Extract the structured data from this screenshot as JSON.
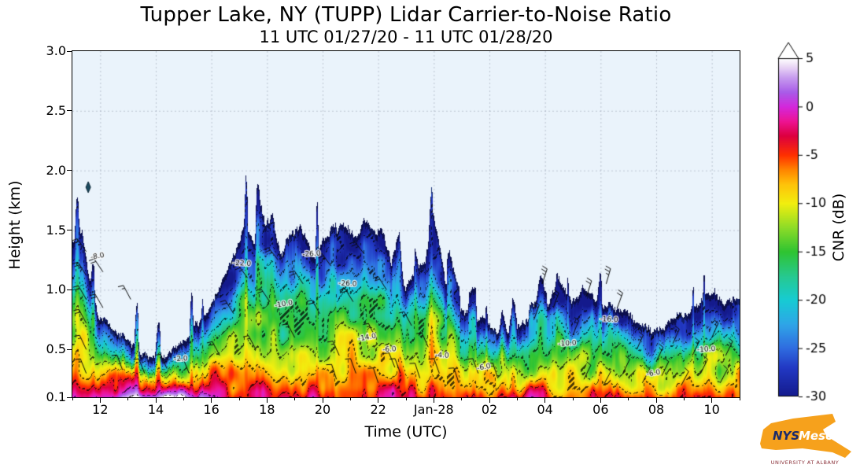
{
  "title": "Tupper Lake, NY (TUPP) Lidar Carrier-to-Noise Ratio",
  "subtitle": "11 UTC 01/27/20 - 11 UTC 01/28/20",
  "axes": {
    "xlabel": "Time (UTC)",
    "ylabel": "Height (km)",
    "x_range_hours": [
      11,
      35
    ],
    "y_range_km": [
      0.1,
      3.0
    ],
    "x_ticks": [
      {
        "hour": 12,
        "label": "12"
      },
      {
        "hour": 14,
        "label": "14"
      },
      {
        "hour": 16,
        "label": "16"
      },
      {
        "hour": 18,
        "label": "18"
      },
      {
        "hour": 20,
        "label": "20"
      },
      {
        "hour": 22,
        "label": "22"
      },
      {
        "hour": 24,
        "label": "Jan-28"
      },
      {
        "hour": 26,
        "label": "02"
      },
      {
        "hour": 28,
        "label": "04"
      },
      {
        "hour": 30,
        "label": "06"
      },
      {
        "hour": 32,
        "label": "08"
      },
      {
        "hour": 34,
        "label": "10"
      }
    ],
    "y_ticks": [
      {
        "km": 0.1,
        "label": "0.1"
      },
      {
        "km": 0.5,
        "label": "0.5"
      },
      {
        "km": 1.0,
        "label": "1.0"
      },
      {
        "km": 1.5,
        "label": "1.5"
      },
      {
        "km": 2.0,
        "label": "2.0"
      },
      {
        "km": 2.5,
        "label": "2.5"
      },
      {
        "km": 3.0,
        "label": "3.0"
      }
    ]
  },
  "colorbar": {
    "label": "CNR (dB)",
    "min": -30,
    "max": 5,
    "extend": "max",
    "ticks": [
      {
        "value": 5,
        "label": "5"
      },
      {
        "value": 0,
        "label": "0"
      },
      {
        "value": -5,
        "label": "-5"
      },
      {
        "value": -10,
        "label": "-10"
      },
      {
        "value": -15,
        "label": "-15"
      },
      {
        "value": -20,
        "label": "-20"
      },
      {
        "value": -25,
        "label": "-25"
      },
      {
        "value": -30,
        "label": "-30"
      }
    ]
  },
  "chart_data": {
    "type": "heatmap",
    "x_units": "hours UTC (11 UTC 01/27/20 through 11 UTC 01/28/20)",
    "y_units": "km AGL",
    "value_units": "CNR dB",
    "background_color": "#eaf3fb",
    "echo_top_km": [
      [
        11.0,
        1.42
      ],
      [
        11.35,
        1.5
      ],
      [
        11.6,
        1.1
      ],
      [
        11.9,
        0.8
      ],
      [
        12.3,
        0.68
      ],
      [
        12.8,
        0.6
      ],
      [
        13.2,
        0.52
      ],
      [
        13.7,
        0.45
      ],
      [
        14.2,
        0.42
      ],
      [
        14.7,
        0.5
      ],
      [
        15.2,
        0.6
      ],
      [
        15.7,
        0.75
      ],
      [
        16.1,
        0.95
      ],
      [
        16.5,
        1.15
      ],
      [
        16.9,
        1.28
      ],
      [
        17.2,
        1.5
      ],
      [
        17.5,
        1.38
      ],
      [
        17.9,
        1.55
      ],
      [
        18.2,
        1.62
      ],
      [
        18.5,
        1.25
      ],
      [
        18.9,
        1.4
      ],
      [
        19.2,
        1.52
      ],
      [
        19.6,
        1.22
      ],
      [
        20.0,
        1.35
      ],
      [
        20.4,
        1.5
      ],
      [
        20.8,
        1.45
      ],
      [
        21.2,
        1.38
      ],
      [
        21.5,
        1.55
      ],
      [
        21.9,
        1.48
      ],
      [
        22.2,
        1.52
      ],
      [
        22.5,
        1.15
      ],
      [
        22.9,
        1.0
      ],
      [
        23.3,
        1.1
      ],
      [
        23.7,
        1.25
      ],
      [
        24.0,
        1.68
      ],
      [
        24.2,
        1.45
      ],
      [
        24.5,
        1.0
      ],
      [
        24.9,
        0.85
      ],
      [
        25.3,
        0.78
      ],
      [
        25.8,
        0.72
      ],
      [
        26.3,
        0.62
      ],
      [
        26.8,
        0.6
      ],
      [
        27.2,
        0.7
      ],
      [
        27.7,
        0.78
      ],
      [
        28.1,
        0.85
      ],
      [
        28.5,
        1.08
      ],
      [
        28.9,
        0.92
      ],
      [
        29.3,
        1.0
      ],
      [
        29.7,
        0.95
      ],
      [
        30.1,
        0.88
      ],
      [
        30.5,
        0.82
      ],
      [
        31.0,
        0.76
      ],
      [
        31.5,
        0.7
      ],
      [
        32.0,
        0.66
      ],
      [
        32.5,
        0.7
      ],
      [
        33.0,
        0.76
      ],
      [
        33.5,
        0.88
      ],
      [
        34.0,
        1.02
      ],
      [
        34.4,
        0.9
      ],
      [
        34.8,
        0.95
      ],
      [
        35.0,
        0.92
      ]
    ],
    "surface_cnr_db": [
      [
        11,
        -1.5
      ],
      [
        11.8,
        0.5
      ],
      [
        12.5,
        3.0
      ],
      [
        13.5,
        4.5
      ],
      [
        14.5,
        4.0
      ],
      [
        15.3,
        2.5
      ],
      [
        16.0,
        0.5
      ],
      [
        16.8,
        -2.0
      ],
      [
        17.5,
        -3.0
      ],
      [
        18.5,
        -3.5
      ],
      [
        19.5,
        -3.0
      ],
      [
        20.5,
        -4.0
      ],
      [
        21.5,
        -3.0
      ],
      [
        22.5,
        -2.5
      ],
      [
        23.5,
        -3.5
      ],
      [
        24.5,
        -4.0
      ],
      [
        25.5,
        -3.0
      ],
      [
        26.5,
        -2.5
      ],
      [
        27.5,
        -3.5
      ],
      [
        28.5,
        -4.5
      ],
      [
        29.5,
        -4.0
      ],
      [
        30.5,
        -4.5
      ],
      [
        31.5,
        -4.0
      ],
      [
        32.5,
        -4.5
      ],
      [
        33.5,
        -4.0
      ],
      [
        34.5,
        -4.5
      ],
      [
        35,
        -4.0
      ]
    ],
    "colormap_stops": [
      [
        -30,
        "#141a8c"
      ],
      [
        -27,
        "#2239c4"
      ],
      [
        -25,
        "#2f6ce0"
      ],
      [
        -22.5,
        "#2fa6e8"
      ],
      [
        -20,
        "#17ccd4"
      ],
      [
        -17.5,
        "#27c98f"
      ],
      [
        -15,
        "#2fc432"
      ],
      [
        -12.5,
        "#8edc28"
      ],
      [
        -10,
        "#f2ef0f"
      ],
      [
        -8,
        "#ffc20a"
      ],
      [
        -6.5,
        "#ff8400"
      ],
      [
        -5,
        "#ff3000"
      ],
      [
        -3,
        "#dd0040"
      ],
      [
        -1.5,
        "#ee1493"
      ],
      [
        0,
        "#d428dc"
      ],
      [
        1.5,
        "#a95ce8"
      ],
      [
        3,
        "#c79bef"
      ],
      [
        4.2,
        "#ecdaf6"
      ],
      [
        5,
        "#ffffff"
      ]
    ],
    "isolated_echo": {
      "hour": 11.57,
      "km": 1.86
    },
    "wind_barbs": [
      [
        11.5,
        1.32,
        125,
        25
      ],
      [
        11.5,
        1.12,
        122,
        25
      ],
      [
        11.5,
        0.92,
        120,
        20
      ],
      [
        11.5,
        0.72,
        118,
        20
      ],
      [
        11.5,
        0.5,
        115,
        15
      ],
      [
        11.5,
        0.3,
        112,
        15
      ],
      [
        12.1,
        1.15,
        124,
        20
      ],
      [
        12.1,
        0.85,
        120,
        20
      ],
      [
        13.1,
        0.92,
        118,
        15
      ],
      [
        12.8,
        0.33,
        110,
        10
      ],
      [
        13.6,
        0.3,
        112,
        10
      ],
      [
        14.4,
        0.34,
        114,
        10
      ],
      [
        15.2,
        0.3,
        112,
        10
      ],
      [
        16.3,
        0.45,
        118,
        15
      ],
      [
        16.8,
        0.8,
        122,
        20
      ],
      [
        17.3,
        1.1,
        126,
        25
      ],
      [
        17.6,
        0.5,
        118,
        15
      ],
      [
        18.1,
        0.9,
        124,
        20
      ],
      [
        18.4,
        1.25,
        128,
        25
      ],
      [
        19.0,
        0.6,
        118,
        15
      ],
      [
        19.3,
        1.05,
        124,
        20
      ],
      [
        19.9,
        0.8,
        120,
        20
      ],
      [
        20.3,
        1.2,
        126,
        25
      ],
      [
        20.6,
        0.45,
        114,
        15
      ],
      [
        21.1,
        0.9,
        122,
        20
      ],
      [
        21.5,
        1.3,
        128,
        25
      ],
      [
        21.9,
        0.6,
        116,
        15
      ],
      [
        22.3,
        1.0,
        122,
        20
      ],
      [
        22.6,
        0.35,
        112,
        10
      ],
      [
        20.5,
        0.25,
        108,
        10
      ],
      [
        21.2,
        0.3,
        110,
        10
      ],
      [
        22.0,
        0.22,
        108,
        10
      ],
      [
        22.8,
        0.3,
        110,
        10
      ],
      [
        23.5,
        0.26,
        108,
        10
      ],
      [
        24.2,
        0.3,
        110,
        10
      ],
      [
        24.9,
        0.22,
        108,
        10
      ],
      [
        25.6,
        0.3,
        110,
        10
      ],
      [
        26.3,
        0.26,
        108,
        10
      ],
      [
        23.2,
        0.7,
        118,
        15
      ],
      [
        23.8,
        0.52,
        114,
        15
      ],
      [
        27.6,
        0.75,
        70,
        20
      ],
      [
        27.9,
        1.05,
        72,
        25
      ],
      [
        28.3,
        0.85,
        70,
        20
      ],
      [
        29.0,
        0.62,
        68,
        15
      ],
      [
        29.5,
        0.95,
        72,
        20
      ],
      [
        30.2,
        1.05,
        74,
        25
      ],
      [
        30.6,
        0.85,
        70,
        20
      ],
      [
        29.4,
        0.25,
        64,
        10
      ],
      [
        30.1,
        0.2,
        62,
        10
      ],
      [
        30.8,
        0.3,
        64,
        10
      ],
      [
        31.5,
        0.22,
        62,
        10
      ],
      [
        32.2,
        0.28,
        64,
        10
      ],
      [
        32.9,
        0.2,
        62,
        10
      ],
      [
        33.6,
        0.3,
        64,
        10
      ],
      [
        34.3,
        0.22,
        62,
        10
      ],
      [
        31.3,
        0.5,
        66,
        15
      ],
      [
        32.0,
        0.4,
        64,
        15
      ],
      [
        32.6,
        0.55,
        66,
        15
      ],
      [
        33.3,
        0.45,
        64,
        15
      ],
      [
        34.0,
        0.6,
        66,
        15
      ],
      [
        34.5,
        0.45,
        64,
        15
      ]
    ],
    "contour_labels": [
      {
        "t": 11.9,
        "h": 1.28,
        "text": "-8.0"
      },
      {
        "t": 14.9,
        "h": 0.42,
        "text": "-2.0"
      },
      {
        "t": 17.1,
        "h": 1.22,
        "text": "-22.0"
      },
      {
        "t": 18.6,
        "h": 0.88,
        "text": "-10.0"
      },
      {
        "t": 19.6,
        "h": 1.3,
        "text": "-26.0"
      },
      {
        "t": 20.9,
        "h": 1.05,
        "text": "-26.0"
      },
      {
        "t": 21.6,
        "h": 0.6,
        "text": "-14.0"
      },
      {
        "t": 22.4,
        "h": 0.5,
        "text": "-6.0"
      },
      {
        "t": 24.3,
        "h": 0.45,
        "text": "-4.0"
      },
      {
        "t": 25.8,
        "h": 0.35,
        "text": "-6.0"
      },
      {
        "t": 28.8,
        "h": 0.55,
        "text": "-10.0"
      },
      {
        "t": 30.3,
        "h": 0.75,
        "text": "-16.0"
      },
      {
        "t": 31.9,
        "h": 0.3,
        "text": "-6.0"
      },
      {
        "t": 33.8,
        "h": 0.5,
        "text": "-10.0"
      }
    ]
  },
  "logo": {
    "nys": "NYS",
    "mesonet": "Mesonet",
    "tagline": "UNIVERSITY AT ALBANY"
  }
}
